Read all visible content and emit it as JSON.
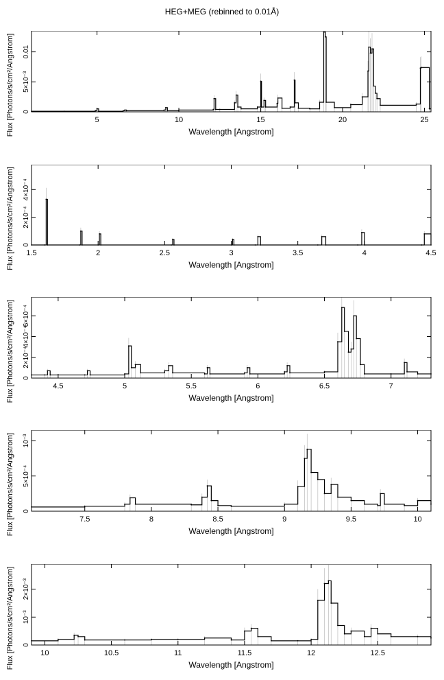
{
  "title": "HEG+MEG (rebinned to 0.01Å)",
  "chart_data": [
    {
      "type": "line",
      "xlabel": "Wavelength [Angstrom]",
      "ylabel": "Flux [Photons/s/cm²/Angstrom]",
      "xlim": [
        1,
        25.4
      ],
      "ylim": [
        0,
        0.0135
      ],
      "xticks": [
        {
          "v": 5,
          "label": "5"
        },
        {
          "v": 10,
          "label": "10"
        },
        {
          "v": 15,
          "label": "15"
        },
        {
          "v": 20,
          "label": "20"
        },
        {
          "v": 25,
          "label": "25"
        }
      ],
      "yticks": [
        {
          "v": 0,
          "label": "0"
        },
        {
          "v": 0.005,
          "label": "5×10⁻³"
        },
        {
          "v": 0.01,
          "label": "0.01"
        }
      ],
      "series": [
        {
          "x": [
            1.0,
            3.0,
            4.9,
            5.0,
            5.1,
            6.6,
            6.7,
            6.8,
            9.1,
            9.2,
            9.3,
            10.0,
            12.1,
            12.15,
            12.25,
            12.5,
            13.4,
            13.5,
            13.6,
            13.8,
            14.8,
            15.0,
            15.05,
            15.2,
            15.3,
            16.0,
            16.05,
            16.3,
            16.8,
            17.05,
            17.1,
            17.3,
            18.0,
            18.6,
            18.85,
            18.95,
            19.0,
            19.5,
            20.5,
            21.2,
            21.55,
            21.6,
            21.7,
            21.8,
            21.9,
            22.0,
            22.1,
            22.3,
            24.5,
            24.75,
            24.8,
            25.3
          ],
          "y": [
            0.0001,
            0.0001,
            0.0002,
            0.0005,
            0.0001,
            0.0002,
            0.0003,
            0.0002,
            0.0003,
            0.0007,
            0.0002,
            0.0003,
            0.0004,
            0.0022,
            0.0004,
            0.0004,
            0.0015,
            0.0028,
            0.0008,
            0.0005,
            0.0008,
            0.0051,
            0.0008,
            0.0019,
            0.0008,
            0.0014,
            0.0023,
            0.0006,
            0.0008,
            0.0053,
            0.0015,
            0.0006,
            0.0005,
            0.0016,
            0.0133,
            0.0125,
            0.0016,
            0.0007,
            0.0012,
            0.0025,
            0.0068,
            0.0108,
            0.0098,
            0.0105,
            0.0043,
            0.0031,
            0.0022,
            0.0011,
            0.0013,
            0.0073,
            0.0074,
            0.0005
          ]
        }
      ]
    },
    {
      "type": "line",
      "xlabel": "Wavelength [Angstrom]",
      "ylabel": "Flux [Photons/s/cm²/Angstrom]",
      "xlim": [
        1.5,
        4.5
      ],
      "ylim": [
        0,
        0.00058
      ],
      "xticks": [
        {
          "v": 1.5,
          "label": "1.5"
        },
        {
          "v": 2,
          "label": "2"
        },
        {
          "v": 2.5,
          "label": "2.5"
        },
        {
          "v": 3,
          "label": "3"
        },
        {
          "v": 3.5,
          "label": "3.5"
        },
        {
          "v": 4,
          "label": "4"
        },
        {
          "v": 4.5,
          "label": "4.5"
        }
      ],
      "yticks": [
        {
          "v": 0,
          "label": "0"
        },
        {
          "v": 0.0002,
          "label": "2×10⁻⁴"
        },
        {
          "v": 0.0004,
          "label": "4×10⁻⁴"
        }
      ],
      "series": [
        {
          "x": [
            1.5,
            1.6,
            1.61,
            1.62,
            1.86,
            1.87,
            1.88,
            2.0,
            2.01,
            2.02,
            2.55,
            2.56,
            2.57,
            3.0,
            3.01,
            3.02,
            3.18,
            3.2,
            3.22,
            3.65,
            3.68,
            3.71,
            3.95,
            3.98,
            4.0,
            4.43,
            4.45,
            4.5
          ],
          "y": [
            0.0,
            0.0,
            0.00033,
            0.0,
            0.0,
            0.0001,
            0.0,
            0.0,
            8e-05,
            0.0,
            0.0,
            4e-05,
            0.0,
            0.0,
            4e-05,
            0.0,
            0.0,
            6e-05,
            0.0,
            0.0,
            6e-05,
            0.0,
            0.0,
            9e-05,
            0.0,
            0.0,
            8e-05,
            0.0
          ]
        }
      ]
    },
    {
      "type": "line",
      "xlabel": "Wavelength [Angstrom]",
      "ylabel": "Flux [Photons/s/cm²/Angstrom]",
      "xlim": [
        4.3,
        7.3
      ],
      "ylim": [
        0,
        0.00078
      ],
      "xticks": [
        {
          "v": 4.5,
          "label": "4.5"
        },
        {
          "v": 5,
          "label": "5"
        },
        {
          "v": 5.5,
          "label": "5.5"
        },
        {
          "v": 6,
          "label": "6"
        },
        {
          "v": 6.5,
          "label": "6.5"
        },
        {
          "v": 7,
          "label": "7"
        }
      ],
      "yticks": [
        {
          "v": 0,
          "label": "0"
        },
        {
          "v": 0.0002,
          "label": "2×10⁻⁴"
        },
        {
          "v": 0.0004,
          "label": "4×10⁻⁴"
        },
        {
          "v": 0.0006,
          "label": "6×10⁻⁴"
        }
      ],
      "series": [
        {
          "x": [
            4.3,
            4.4,
            4.42,
            4.44,
            4.7,
            4.72,
            4.74,
            5.0,
            5.03,
            5.05,
            5.08,
            5.12,
            5.3,
            5.33,
            5.36,
            5.6,
            5.62,
            5.64,
            5.9,
            5.92,
            5.94,
            6.2,
            6.22,
            6.24,
            6.5,
            6.6,
            6.63,
            6.65,
            6.68,
            6.7,
            6.72,
            6.74,
            6.77,
            6.8,
            7.0,
            7.1,
            7.12,
            7.2,
            7.3
          ],
          "y": [
            3e-05,
            3e-05,
            7e-05,
            3e-05,
            3e-05,
            7e-05,
            3e-05,
            4e-05,
            0.00031,
            0.0001,
            0.00013,
            5e-05,
            7e-05,
            0.00012,
            5e-05,
            4e-05,
            0.0001,
            4e-05,
            5e-05,
            0.0001,
            4e-05,
            6e-05,
            0.00012,
            5e-05,
            6e-05,
            0.00035,
            0.00068,
            0.00045,
            0.00025,
            0.00028,
            0.0006,
            0.00038,
            0.00013,
            4e-05,
            4e-05,
            0.00015,
            6e-05,
            4e-05,
            4e-05
          ]
        }
      ]
    },
    {
      "type": "line",
      "xlabel": "Wavelength [Angstrom]",
      "ylabel": "Flux [Photons/s/cm²/Angstrom]",
      "xlim": [
        7.1,
        10.1
      ],
      "ylim": [
        0,
        0.00115
      ],
      "xticks": [
        {
          "v": 7.5,
          "label": "7.5"
        },
        {
          "v": 8,
          "label": "8"
        },
        {
          "v": 8.5,
          "label": "8.5"
        },
        {
          "v": 9,
          "label": "9"
        },
        {
          "v": 9.5,
          "label": "9.5"
        },
        {
          "v": 10,
          "label": "10"
        }
      ],
      "yticks": [
        {
          "v": 0,
          "label": "0"
        },
        {
          "v": 0.0005,
          "label": "5×10⁻⁴"
        },
        {
          "v": 0.001,
          "label": "10⁻³"
        }
      ],
      "series": [
        {
          "x": [
            7.1,
            7.5,
            7.8,
            7.84,
            7.88,
            8.3,
            8.38,
            8.42,
            8.45,
            8.5,
            8.6,
            9.0,
            9.1,
            9.15,
            9.17,
            9.2,
            9.25,
            9.3,
            9.35,
            9.4,
            9.5,
            9.6,
            9.7,
            9.72,
            9.75,
            9.9,
            10.0,
            10.1
          ],
          "y": [
            6e-05,
            7e-05,
            0.0001,
            0.00019,
            0.0001,
            9e-05,
            0.0002,
            0.00036,
            0.00015,
            8e-05,
            7e-05,
            0.0001,
            0.00035,
            0.00075,
            0.00088,
            0.00055,
            0.00045,
            0.00025,
            0.00038,
            0.0002,
            0.00015,
            0.0001,
            8e-05,
            0.00025,
            0.0001,
            8e-05,
            0.00015,
            0.0001
          ]
        }
      ]
    },
    {
      "type": "line",
      "xlabel": "Wavelength [Angstrom]",
      "ylabel": "Flux [Photons/s/cm²/Angstrom]",
      "xlim": [
        9.9,
        12.9
      ],
      "ylim": [
        0,
        0.0029
      ],
      "xticks": [
        {
          "v": 10,
          "label": "10"
        },
        {
          "v": 10.5,
          "label": "10.5"
        },
        {
          "v": 11,
          "label": "11"
        },
        {
          "v": 11.5,
          "label": "11.5"
        },
        {
          "v": 12,
          "label": "12"
        },
        {
          "v": 12.5,
          "label": "12.5"
        }
      ],
      "yticks": [
        {
          "v": 0,
          "label": "0"
        },
        {
          "v": 0.001,
          "label": "10⁻³"
        },
        {
          "v": 0.002,
          "label": "2×10⁻³"
        }
      ],
      "series": [
        {
          "x": [
            9.9,
            10.1,
            10.22,
            10.25,
            10.3,
            10.6,
            10.8,
            11.0,
            11.2,
            11.4,
            11.5,
            11.55,
            11.6,
            11.7,
            11.9,
            12.0,
            12.05,
            12.1,
            12.13,
            12.15,
            12.2,
            12.25,
            12.3,
            12.4,
            12.45,
            12.5,
            12.6,
            12.8,
            12.9
          ],
          "y": [
            0.00015,
            0.0002,
            0.00035,
            0.0003,
            0.00018,
            0.00018,
            0.0002,
            0.0002,
            0.00025,
            0.00018,
            0.0005,
            0.0006,
            0.0003,
            0.00015,
            0.00015,
            0.0002,
            0.0016,
            0.0022,
            0.0023,
            0.0015,
            0.0007,
            0.0004,
            0.0005,
            0.0003,
            0.0006,
            0.0004,
            0.0003,
            0.0003,
            0.00025
          ]
        }
      ]
    }
  ]
}
